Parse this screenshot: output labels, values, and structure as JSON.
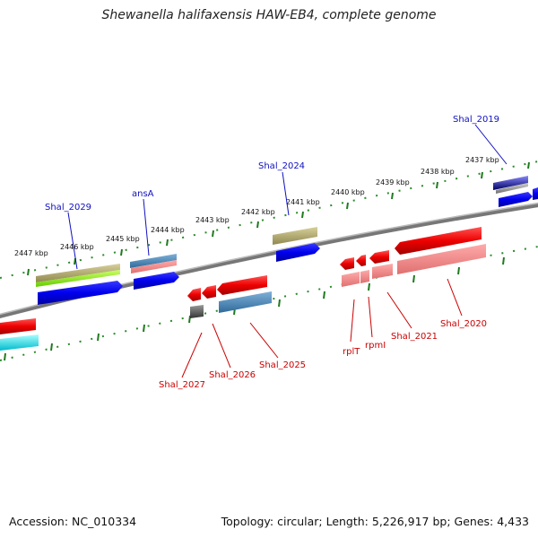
{
  "title": "Shewanella halifaxensis HAW-EB4, complete genome",
  "footer": {
    "accession": "Accession: NC_010334",
    "summary": "Topology: circular; Length: 5,226,917 bp; Genes: 4,433"
  },
  "colors": {
    "forward_label": "#1010c0",
    "reverse_label": "#cc0000",
    "tick": "#2a8a2a",
    "backbone": "#888888"
  },
  "scale_labels": [
    "2447 kbp",
    "2446 kbp",
    "2445 kbp",
    "2444 kbp",
    "2443 kbp",
    "2442 kbp",
    "2441 kbp",
    "2440 kbp",
    "2439 kbp",
    "2438 kbp",
    "2437 kbp"
  ],
  "forward_gene_labels": [
    "Shal_2029",
    "ansA",
    "Shal_2024",
    "Shal_2019"
  ],
  "reverse_gene_labels": [
    "Shal_2027",
    "Shal_2026",
    "Shal_2025",
    "rplT",
    "rpmI",
    "Shal_2021",
    "Shal_2020"
  ]
}
